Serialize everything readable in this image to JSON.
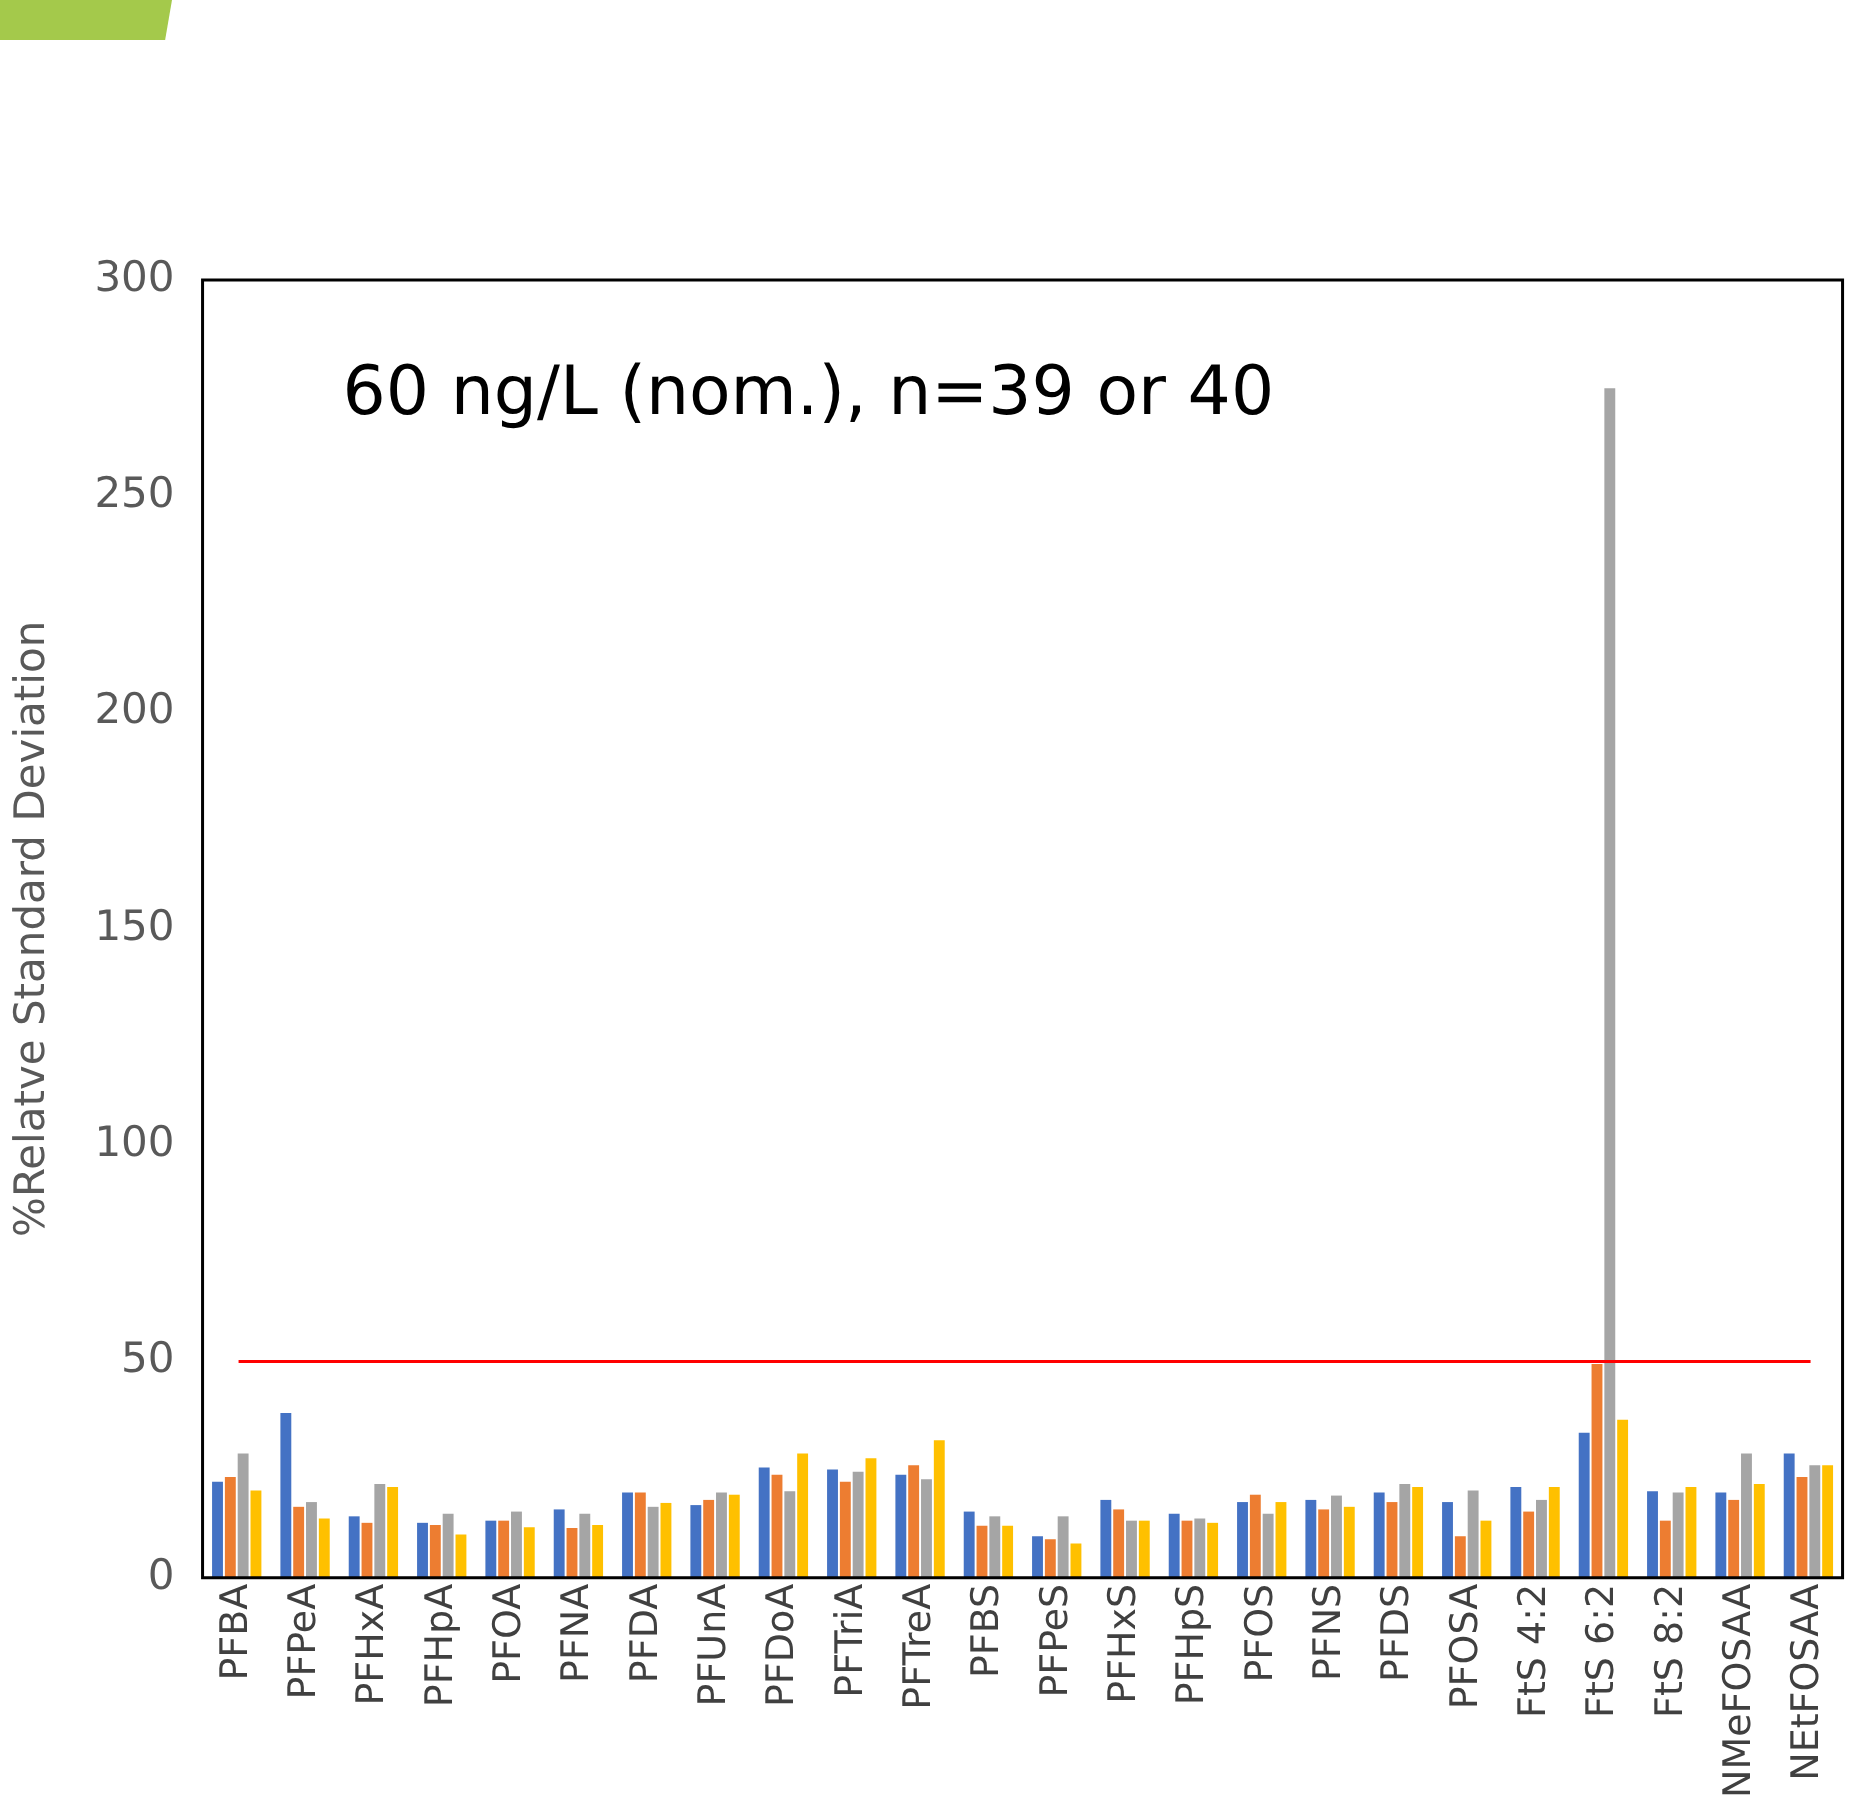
{
  "chart_data": {
    "type": "bar",
    "ylabel": "%Relatve Standard Deviation",
    "annotations": [
      "60 ng/L (nom.), n=39 or 40"
    ],
    "categories": [
      "PFBA",
      "PFPeA",
      "PFHxA",
      "PFHpA",
      "PFOA",
      "PFNA",
      "PFDA",
      "PFUnA",
      "PFDoA",
      "PFTriA",
      "PFTreA",
      "PFBS",
      "PFPeS",
      "PFHxS",
      "PFHpS",
      "PFOS",
      "PFNS",
      "PFDS",
      "PFOSA",
      "FtS 4:2",
      "FtS 6:2",
      "FtS 8:2",
      "NMeFOSAA",
      "NEtFOSAA"
    ],
    "series": [
      {
        "color": "#4472c4",
        "values": [
          22.2,
          38.1,
          14.2,
          12.7,
          13.2,
          15.8,
          19.7,
          16.8,
          25.5,
          25,
          23.8,
          15.3,
          9.6,
          18,
          14.8,
          17.5,
          18,
          19.7,
          17.5,
          21,
          33.5,
          20,
          19.7,
          28.7
        ]
      },
      {
        "color": "#ed7d31",
        "values": [
          23.3,
          16.4,
          12.7,
          12.2,
          13.2,
          11.5,
          19.7,
          18,
          23.8,
          22.2,
          26,
          12,
          8.9,
          15.8,
          13.2,
          19.2,
          15.8,
          17.5,
          9.6,
          15.3,
          49.4,
          13.2,
          18,
          23.3
        ]
      },
      {
        "color": "#a5a5a5",
        "values": [
          28.7,
          17.5,
          21.7,
          14.8,
          15.3,
          14.8,
          16.4,
          19.7,
          20,
          24.5,
          22.8,
          14.2,
          14.2,
          13.2,
          13.7,
          14.8,
          19,
          21.7,
          20.2,
          18,
          275,
          19.7,
          28.7,
          26
        ]
      },
      {
        "color": "#ffc000",
        "values": [
          20.2,
          13.7,
          21,
          10,
          11.7,
          12.2,
          17.3,
          19.2,
          28.7,
          27.6,
          31.8,
          12,
          7.9,
          13.2,
          12.7,
          17.5,
          16.4,
          21,
          13.2,
          21,
          36.5,
          21,
          21.7,
          26
        ]
      }
    ],
    "ylim": [
      0,
      300
    ],
    "yticks": [
      0,
      50,
      100,
      150,
      200,
      250,
      300
    ],
    "ref_lines": [
      {
        "axis": "y",
        "value": 50,
        "color": "#ff0000"
      }
    ]
  }
}
